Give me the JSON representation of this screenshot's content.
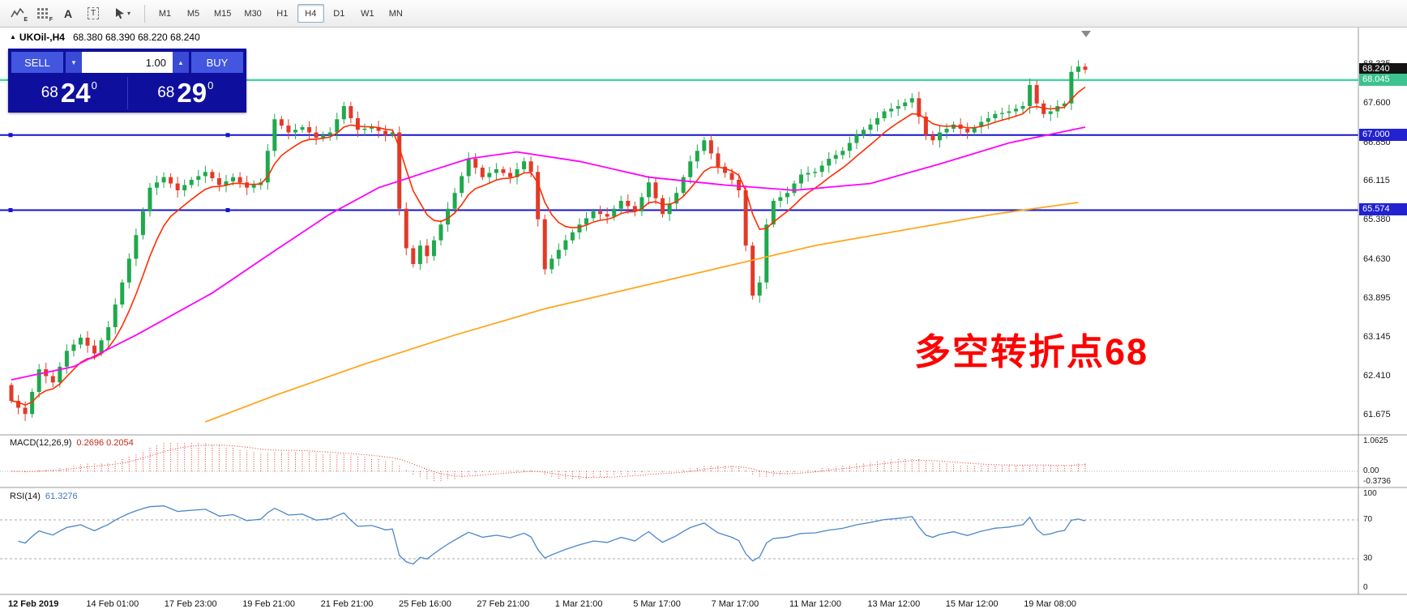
{
  "toolbar": {
    "icon_badges": {
      "e": "E",
      "f": "F",
      "a": "A",
      "t": "T"
    },
    "timeframes": [
      "M1",
      "M5",
      "M15",
      "M30",
      "H1",
      "H4",
      "D1",
      "W1",
      "MN"
    ],
    "active_timeframe": "H4"
  },
  "icons": {
    "header_triangle": "▲",
    "caret_down": "▼",
    "caret_up": "▲",
    "cursor_caret": "▾"
  },
  "chart_header": {
    "symbol": "UKOil-,H4",
    "ohlc": "68.380 68.390 68.220 68.240"
  },
  "trade_panel": {
    "sell_label": "SELL",
    "buy_label": "BUY",
    "volume": "1.00",
    "sell_price": {
      "whole": "68",
      "pips": "24",
      "sup": "0"
    },
    "buy_price": {
      "whole": "68",
      "pips": "29",
      "sup": "0"
    }
  },
  "annotation": {
    "text": "多空转折点68",
    "color": "#ff0000"
  },
  "indicators": {
    "macd": {
      "name": "MACD(12,26,9)",
      "values": "0.2696 0.2054",
      "fast": 12,
      "slow": 26,
      "signal": 9,
      "color": "#e03226",
      "axis": [
        {
          "text": "1.0625",
          "value": 1.0625
        },
        {
          "text": "0.00",
          "value": 0
        },
        {
          "text": "-0.3736",
          "value": -0.3736
        }
      ]
    },
    "rsi": {
      "name": "RSI(14)",
      "value": "61.3276",
      "period": 14,
      "color": "#4a86c8",
      "levels": [
        70,
        30
      ],
      "axis": [
        {
          "text": "100",
          "value": 100
        },
        {
          "text": "70",
          "value": 70
        },
        {
          "text": "30",
          "value": 30
        },
        {
          "text": "0",
          "value": 0
        }
      ]
    }
  },
  "time_axis": {
    "labels": [
      "12 Feb 2019",
      "14 Feb 01:00",
      "17 Feb 23:00",
      "19 Feb 21:00",
      "21 Feb 21:00",
      "25 Feb 16:00",
      "27 Feb 21:00",
      "1 Mar 21:00",
      "5 Mar 17:00",
      "7 Mar 17:00",
      "11 Mar 12:00",
      "13 Mar 12:00",
      "15 Mar 12:00",
      "19 Mar 08:00"
    ]
  },
  "chart_data": {
    "type": "candlestick",
    "symbol": "UKOil-",
    "timeframe": "H4",
    "current_ohlc": {
      "open": 68.38,
      "high": 68.39,
      "low": 68.22,
      "close": 68.24
    },
    "open_first": 62.25,
    "closes": [
      61.95,
      61.82,
      61.7,
      62.12,
      62.55,
      62.42,
      62.3,
      62.6,
      62.9,
      63.02,
      63.15,
      63.0,
      62.85,
      63.1,
      63.35,
      63.78,
      64.2,
      64.65,
      65.1,
      65.55,
      66.0,
      66.1,
      66.2,
      66.08,
      65.95,
      66.05,
      66.15,
      66.22,
      66.3,
      66.18,
      66.05,
      66.12,
      66.2,
      66.1,
      66.0,
      66.05,
      66.1,
      66.7,
      67.3,
      67.18,
      67.05,
      67.1,
      67.15,
      67.05,
      66.95,
      67.0,
      67.05,
      67.3,
      67.55,
      67.32,
      67.1,
      67.12,
      67.15,
      67.08,
      67.0,
      67.05,
      65.6,
      64.85,
      64.55,
      64.9,
      64.7,
      65.0,
      65.3,
      65.6,
      65.9,
      66.22,
      66.55,
      66.38,
      66.2,
      66.28,
      66.35,
      66.28,
      66.2,
      66.35,
      66.5,
      66.3,
      65.4,
      64.45,
      64.65,
      64.82,
      65.0,
      65.15,
      65.3,
      65.42,
      65.55,
      65.5,
      65.45,
      65.6,
      65.75,
      65.65,
      65.55,
      65.82,
      66.1,
      65.8,
      65.5,
      65.7,
      65.9,
      66.2,
      66.5,
      66.7,
      66.9,
      66.65,
      66.4,
      66.28,
      66.15,
      65.95,
      64.9,
      63.95,
      64.2,
      65.3,
      65.75,
      65.82,
      65.9,
      66.08,
      66.25,
      66.28,
      66.3,
      66.42,
      66.55,
      66.62,
      66.7,
      66.85,
      67.0,
      67.1,
      67.2,
      67.32,
      67.45,
      67.5,
      67.55,
      67.62,
      67.7,
      67.35,
      67.0,
      66.9,
      67.05,
      67.12,
      67.2,
      67.12,
      67.05,
      67.15,
      67.25,
      67.32,
      67.4,
      67.42,
      67.45,
      67.5,
      67.55,
      67.95,
      67.6,
      67.4,
      67.45,
      67.55,
      67.6,
      68.2,
      68.3,
      68.24
    ],
    "colors": {
      "up": "#1fa94c",
      "down": "#e23a28",
      "ma_red": "#ff2d00",
      "ma_magenta": "#ff00ff",
      "ma_orange": "#ffa620"
    },
    "ma_red_period": 8,
    "ma_magenta_points": [
      [
        0,
        62.35
      ],
      [
        9,
        62.6
      ],
      [
        18,
        63.2
      ],
      [
        29,
        64.0
      ],
      [
        38,
        64.8
      ],
      [
        46,
        65.5
      ],
      [
        53,
        66.0
      ],
      [
        60,
        66.3
      ],
      [
        66,
        66.55
      ],
      [
        73,
        66.68
      ],
      [
        82,
        66.5
      ],
      [
        92,
        66.2
      ],
      [
        103,
        66.05
      ],
      [
        113,
        65.95
      ],
      [
        124,
        66.08
      ],
      [
        134,
        66.45
      ],
      [
        144,
        66.85
      ],
      [
        155,
        67.15
      ]
    ],
    "ma_orange_points": [
      [
        28,
        61.55
      ],
      [
        38,
        62.05
      ],
      [
        51,
        62.65
      ],
      [
        64,
        63.2
      ],
      [
        77,
        63.7
      ],
      [
        90,
        64.1
      ],
      [
        103,
        64.5
      ],
      [
        116,
        64.9
      ],
      [
        129,
        65.2
      ],
      [
        142,
        65.5
      ],
      [
        154,
        65.72
      ]
    ],
    "level_lines": [
      {
        "price": 68.045,
        "color": "#3fd6a0",
        "width": 2.4,
        "handles": false
      },
      {
        "price": 67.0,
        "color": "#1515cc",
        "width": 2,
        "handles": true
      },
      {
        "price": 65.574,
        "color": "#1515cc",
        "width": 2,
        "handles": true
      }
    ],
    "price_tags": [
      {
        "value": 68.24,
        "bg": "#141414"
      },
      {
        "value": 68.045,
        "bg": "#3bc28f"
      },
      {
        "value": 67.0,
        "bg": "#2222d0"
      },
      {
        "value": 65.574,
        "bg": "#2222d0"
      }
    ],
    "y_axis_labels": [
      68.335,
      67.6,
      66.85,
      66.115,
      65.38,
      64.63,
      63.895,
      63.145,
      62.41,
      61.675
    ],
    "ylim": [
      61.3,
      68.6
    ]
  }
}
